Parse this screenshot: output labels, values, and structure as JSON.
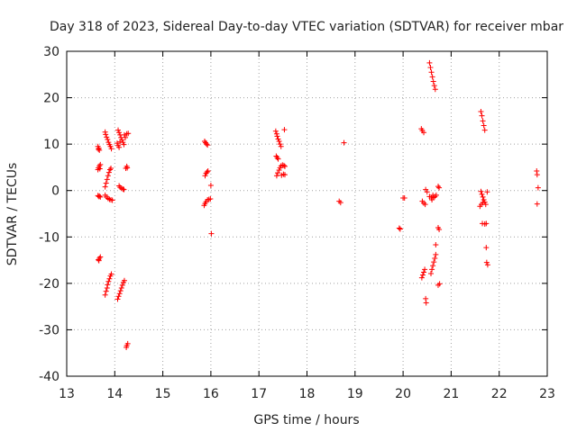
{
  "chart_data": {
    "type": "scatter",
    "title": "Day 318 of 2023, Sidereal Day-to-day VTEC variation (SDTVAR) for receiver mbar",
    "xlabel": "GPS time / hours",
    "ylabel": "SDTVAR / TECUs",
    "xlim": [
      13,
      23
    ],
    "ylim": [
      -40,
      30
    ],
    "xticks": [
      13,
      14,
      15,
      16,
      17,
      18,
      19,
      20,
      21,
      22,
      23
    ],
    "yticks": [
      -40,
      -30,
      -20,
      -10,
      0,
      10,
      20,
      30
    ],
    "grid": true,
    "marker": "+",
    "color": "#ff0000",
    "series": [
      {
        "name": "SDTVAR",
        "points": [
          [
            13.65,
            9.5
          ],
          [
            13.67,
            9.1
          ],
          [
            13.68,
            8.7
          ],
          [
            13.66,
            8.9
          ],
          [
            13.65,
            4.5
          ],
          [
            13.66,
            4.9
          ],
          [
            13.68,
            5.3
          ],
          [
            13.7,
            5.6
          ],
          [
            13.69,
            4.7
          ],
          [
            13.65,
            -1.1
          ],
          [
            13.67,
            -1.3
          ],
          [
            13.7,
            -1.4
          ],
          [
            13.68,
            -1.2
          ],
          [
            13.66,
            -14.9
          ],
          [
            13.68,
            -14.6
          ],
          [
            13.7,
            -14.3
          ],
          [
            13.67,
            -15.1
          ],
          [
            13.8,
            12.6
          ],
          [
            13.81,
            12.1
          ],
          [
            13.83,
            11.5
          ],
          [
            13.85,
            11.0
          ],
          [
            13.87,
            10.4
          ],
          [
            13.89,
            9.9
          ],
          [
            13.91,
            9.5
          ],
          [
            13.93,
            9.0
          ],
          [
            13.8,
            0.8
          ],
          [
            13.82,
            1.6
          ],
          [
            13.84,
            2.4
          ],
          [
            13.86,
            3.2
          ],
          [
            13.88,
            3.9
          ],
          [
            13.9,
            4.5
          ],
          [
            13.92,
            4.8
          ],
          [
            13.8,
            -1.0
          ],
          [
            13.83,
            -1.4
          ],
          [
            13.86,
            -1.7
          ],
          [
            13.89,
            -1.9
          ],
          [
            13.92,
            -2.0
          ],
          [
            13.95,
            -2.1
          ],
          [
            13.8,
            -22.5
          ],
          [
            13.82,
            -21.7
          ],
          [
            13.84,
            -21.0
          ],
          [
            13.85,
            -20.3
          ],
          [
            13.87,
            -19.6
          ],
          [
            13.89,
            -19.0
          ],
          [
            13.91,
            -18.4
          ],
          [
            13.93,
            -18.0
          ],
          [
            14.07,
            13.0
          ],
          [
            14.09,
            12.5
          ],
          [
            14.11,
            12.0
          ],
          [
            14.13,
            11.4
          ],
          [
            14.15,
            10.9
          ],
          [
            14.17,
            10.4
          ],
          [
            14.19,
            9.9
          ],
          [
            14.05,
            10.2
          ],
          [
            14.07,
            9.7
          ],
          [
            14.09,
            9.3
          ],
          [
            14.11,
            10.5
          ],
          [
            14.2,
            12.0
          ],
          [
            14.25,
            12.2
          ],
          [
            14.28,
            12.3
          ],
          [
            14.22,
            11.4
          ],
          [
            14.09,
            1.0
          ],
          [
            14.11,
            0.7
          ],
          [
            14.14,
            0.5
          ],
          [
            14.17,
            0.3
          ],
          [
            14.19,
            0.2
          ],
          [
            14.23,
            4.8
          ],
          [
            14.25,
            5.2
          ],
          [
            14.26,
            4.9
          ],
          [
            14.06,
            -23.4
          ],
          [
            14.08,
            -22.8
          ],
          [
            14.1,
            -22.2
          ],
          [
            14.12,
            -21.6
          ],
          [
            14.14,
            -21.0
          ],
          [
            14.16,
            -20.4
          ],
          [
            14.18,
            -19.8
          ],
          [
            14.2,
            -19.4
          ],
          [
            14.24,
            -33.8
          ],
          [
            14.25,
            -33.4
          ],
          [
            14.27,
            -33.0
          ],
          [
            15.87,
            10.6
          ],
          [
            15.89,
            10.3
          ],
          [
            15.91,
            10.0
          ],
          [
            15.93,
            9.8
          ],
          [
            15.88,
            3.2
          ],
          [
            15.9,
            3.7
          ],
          [
            15.92,
            4.0
          ],
          [
            15.94,
            4.2
          ],
          [
            15.86,
            -3.2
          ],
          [
            15.88,
            -2.8
          ],
          [
            15.9,
            -2.4
          ],
          [
            15.93,
            -2.0
          ],
          [
            15.96,
            -1.9
          ],
          [
            15.99,
            -1.8
          ],
          [
            16.0,
            1.1
          ],
          [
            16.01,
            -9.3
          ],
          [
            17.35,
            12.8
          ],
          [
            17.37,
            12.2
          ],
          [
            17.38,
            11.7
          ],
          [
            17.4,
            11.1
          ],
          [
            17.42,
            10.6
          ],
          [
            17.44,
            10.0
          ],
          [
            17.46,
            9.5
          ],
          [
            17.53,
            13.1
          ],
          [
            17.36,
            7.4
          ],
          [
            17.38,
            7.1
          ],
          [
            17.4,
            6.8
          ],
          [
            17.37,
            3.2
          ],
          [
            17.39,
            3.8
          ],
          [
            17.42,
            4.4
          ],
          [
            17.44,
            4.9
          ],
          [
            17.46,
            5.3
          ],
          [
            17.49,
            5.5
          ],
          [
            17.52,
            5.4
          ],
          [
            17.54,
            5.2
          ],
          [
            17.47,
            3.3
          ],
          [
            17.51,
            3.5
          ],
          [
            17.54,
            3.4
          ],
          [
            18.67,
            -2.3
          ],
          [
            18.7,
            -2.6
          ],
          [
            18.77,
            10.3
          ],
          [
            19.92,
            -8.1
          ],
          [
            19.94,
            -8.3
          ],
          [
            20.0,
            -1.6
          ],
          [
            20.03,
            -1.6
          ],
          [
            20.38,
            13.3
          ],
          [
            20.4,
            12.9
          ],
          [
            20.43,
            12.5
          ],
          [
            20.4,
            -2.3
          ],
          [
            20.43,
            -2.7
          ],
          [
            20.46,
            -3.0
          ],
          [
            20.47,
            0.2
          ],
          [
            20.5,
            -0.3
          ],
          [
            20.39,
            -18.8
          ],
          [
            20.41,
            -18.2
          ],
          [
            20.43,
            -17.6
          ],
          [
            20.45,
            -17.0
          ],
          [
            20.47,
            -23.3
          ],
          [
            20.48,
            -24.2
          ],
          [
            20.55,
            27.5
          ],
          [
            20.57,
            26.5
          ],
          [
            20.59,
            25.5
          ],
          [
            20.61,
            24.5
          ],
          [
            20.63,
            23.5
          ],
          [
            20.65,
            22.6
          ],
          [
            20.67,
            21.8
          ],
          [
            20.55,
            -1.3
          ],
          [
            20.59,
            -1.6
          ],
          [
            20.63,
            -1.5
          ],
          [
            20.66,
            -1.3
          ],
          [
            20.69,
            -1.0
          ],
          [
            20.6,
            -2.0
          ],
          [
            20.62,
            -1.0
          ],
          [
            20.58,
            -17.9
          ],
          [
            20.6,
            -17.0
          ],
          [
            20.62,
            -16.2
          ],
          [
            20.64,
            -15.4
          ],
          [
            20.66,
            -14.6
          ],
          [
            20.68,
            -13.8
          ],
          [
            20.68,
            -11.7
          ],
          [
            20.73,
            0.9
          ],
          [
            20.75,
            0.6
          ],
          [
            20.73,
            -8.0
          ],
          [
            20.75,
            -8.4
          ],
          [
            20.73,
            -20.4
          ],
          [
            20.76,
            -20.1
          ],
          [
            21.62,
            17.0
          ],
          [
            21.64,
            16.1
          ],
          [
            21.66,
            15.0
          ],
          [
            21.68,
            14.0
          ],
          [
            21.7,
            13.0
          ],
          [
            21.62,
            -0.2
          ],
          [
            21.64,
            -0.8
          ],
          [
            21.66,
            -1.4
          ],
          [
            21.68,
            -2.0
          ],
          [
            21.7,
            -2.5
          ],
          [
            21.72,
            -3.0
          ],
          [
            21.6,
            -3.4
          ],
          [
            21.63,
            -3.0
          ],
          [
            21.66,
            -2.6
          ],
          [
            21.75,
            -0.3
          ],
          [
            21.65,
            -7.1
          ],
          [
            21.7,
            -7.2
          ],
          [
            21.73,
            -7.1
          ],
          [
            21.73,
            -12.3
          ],
          [
            21.74,
            -15.5
          ],
          [
            21.76,
            -16.0
          ],
          [
            22.78,
            4.2
          ],
          [
            22.79,
            3.4
          ],
          [
            22.81,
            0.6
          ],
          [
            22.79,
            -2.9
          ]
        ]
      }
    ]
  }
}
